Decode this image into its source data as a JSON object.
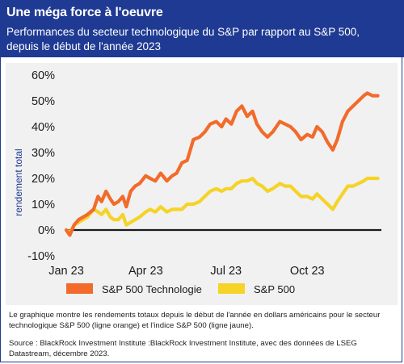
{
  "header": {
    "title": "Une méga force à l'oeuvre",
    "subtitle": "Performances du secteur technologique du S&P par rapport au S&P 500, depuis le début de l'année 2023"
  },
  "colors": {
    "header_bg": "#1f3a93",
    "tech": "#f26b2a",
    "sp500": "#f5d327",
    "zero_line": "#1a1a1a"
  },
  "chart_data": {
    "type": "line",
    "title": "",
    "xlabel": "",
    "ylabel": "rendement total",
    "ylim": [
      -10,
      60
    ],
    "y_ticks": [
      "60%",
      "50%",
      "40%",
      "30%",
      "20%",
      "10%",
      "0%",
      "-10%"
    ],
    "y_tick_values": [
      60,
      50,
      40,
      30,
      20,
      10,
      0,
      -10
    ],
    "x_ticks": [
      "Jan 23",
      "Apr 23",
      "Jul 23",
      "Oct 23"
    ],
    "x_tick_values": [
      "2023-01-01",
      "2023-04-01",
      "2023-07-01",
      "2023-10-01"
    ],
    "grid": false,
    "legend_position": "bottom",
    "series": [
      {
        "name": "S&P 500 Technologie",
        "color": "#f26b2a",
        "points": [
          [
            "2023-01-01",
            0
          ],
          [
            "2023-01-05",
            -2
          ],
          [
            "2023-01-10",
            2
          ],
          [
            "2023-01-15",
            4
          ],
          [
            "2023-01-20",
            5
          ],
          [
            "2023-01-25",
            6
          ],
          [
            "2023-02-01",
            8
          ],
          [
            "2023-02-06",
            13
          ],
          [
            "2023-02-10",
            11
          ],
          [
            "2023-02-15",
            15
          ],
          [
            "2023-02-20",
            12
          ],
          [
            "2023-02-24",
            10
          ],
          [
            "2023-03-01",
            11
          ],
          [
            "2023-03-06",
            13
          ],
          [
            "2023-03-10",
            9
          ],
          [
            "2023-03-15",
            15
          ],
          [
            "2023-03-20",
            17
          ],
          [
            "2023-03-25",
            18
          ],
          [
            "2023-04-01",
            21
          ],
          [
            "2023-04-06",
            20
          ],
          [
            "2023-04-12",
            19
          ],
          [
            "2023-04-18",
            22
          ],
          [
            "2023-04-25",
            19
          ],
          [
            "2023-05-01",
            21
          ],
          [
            "2023-05-06",
            22
          ],
          [
            "2023-05-12",
            26
          ],
          [
            "2023-05-18",
            27
          ],
          [
            "2023-05-25",
            35
          ],
          [
            "2023-06-01",
            36
          ],
          [
            "2023-06-07",
            38
          ],
          [
            "2023-06-13",
            41
          ],
          [
            "2023-06-20",
            42
          ],
          [
            "2023-06-26",
            40
          ],
          [
            "2023-07-01",
            43
          ],
          [
            "2023-07-07",
            41
          ],
          [
            "2023-07-13",
            46
          ],
          [
            "2023-07-19",
            48
          ],
          [
            "2023-07-25",
            44
          ],
          [
            "2023-07-31",
            46
          ],
          [
            "2023-08-05",
            41
          ],
          [
            "2023-08-11",
            38
          ],
          [
            "2023-08-17",
            36
          ],
          [
            "2023-08-23",
            38
          ],
          [
            "2023-08-31",
            42
          ],
          [
            "2023-09-06",
            41
          ],
          [
            "2023-09-12",
            40
          ],
          [
            "2023-09-18",
            38
          ],
          [
            "2023-09-24",
            35
          ],
          [
            "2023-10-01",
            37
          ],
          [
            "2023-10-07",
            36
          ],
          [
            "2023-10-12",
            40
          ],
          [
            "2023-10-18",
            38
          ],
          [
            "2023-10-24",
            34
          ],
          [
            "2023-10-30",
            31
          ],
          [
            "2023-11-04",
            35
          ],
          [
            "2023-11-10",
            42
          ],
          [
            "2023-11-16",
            46
          ],
          [
            "2023-11-22",
            48
          ],
          [
            "2023-11-28",
            50
          ],
          [
            "2023-12-04",
            52
          ],
          [
            "2023-12-08",
            53
          ],
          [
            "2023-12-14",
            52
          ],
          [
            "2023-12-20",
            52
          ]
        ]
      },
      {
        "name": "S&P 500",
        "color": "#f5d327",
        "points": [
          [
            "2023-01-01",
            0
          ],
          [
            "2023-01-05",
            -1
          ],
          [
            "2023-01-10",
            2
          ],
          [
            "2023-01-15",
            3
          ],
          [
            "2023-01-20",
            4
          ],
          [
            "2023-01-25",
            5
          ],
          [
            "2023-02-01",
            8
          ],
          [
            "2023-02-06",
            7
          ],
          [
            "2023-02-10",
            6
          ],
          [
            "2023-02-15",
            8
          ],
          [
            "2023-02-20",
            5
          ],
          [
            "2023-02-24",
            4
          ],
          [
            "2023-03-01",
            4
          ],
          [
            "2023-03-06",
            6
          ],
          [
            "2023-03-10",
            2
          ],
          [
            "2023-03-15",
            3
          ],
          [
            "2023-03-20",
            4
          ],
          [
            "2023-03-25",
            5
          ],
          [
            "2023-04-01",
            7
          ],
          [
            "2023-04-06",
            8
          ],
          [
            "2023-04-12",
            7
          ],
          [
            "2023-04-18",
            9
          ],
          [
            "2023-04-25",
            7
          ],
          [
            "2023-05-01",
            8
          ],
          [
            "2023-05-06",
            8
          ],
          [
            "2023-05-12",
            8
          ],
          [
            "2023-05-18",
            10
          ],
          [
            "2023-05-25",
            10
          ],
          [
            "2023-06-01",
            11
          ],
          [
            "2023-06-07",
            13
          ],
          [
            "2023-06-13",
            15
          ],
          [
            "2023-06-20",
            16
          ],
          [
            "2023-06-26",
            15
          ],
          [
            "2023-07-01",
            16
          ],
          [
            "2023-07-07",
            16
          ],
          [
            "2023-07-13",
            18
          ],
          [
            "2023-07-19",
            19
          ],
          [
            "2023-07-25",
            19
          ],
          [
            "2023-07-31",
            20
          ],
          [
            "2023-08-05",
            18
          ],
          [
            "2023-08-11",
            17
          ],
          [
            "2023-08-17",
            15
          ],
          [
            "2023-08-23",
            16
          ],
          [
            "2023-08-31",
            18
          ],
          [
            "2023-09-06",
            17
          ],
          [
            "2023-09-12",
            17
          ],
          [
            "2023-09-18",
            15
          ],
          [
            "2023-09-24",
            13
          ],
          [
            "2023-10-01",
            13
          ],
          [
            "2023-10-07",
            12
          ],
          [
            "2023-10-12",
            14
          ],
          [
            "2023-10-18",
            12
          ],
          [
            "2023-10-24",
            10
          ],
          [
            "2023-10-30",
            8
          ],
          [
            "2023-11-04",
            11
          ],
          [
            "2023-11-10",
            14
          ],
          [
            "2023-11-16",
            17
          ],
          [
            "2023-11-22",
            17
          ],
          [
            "2023-11-28",
            18
          ],
          [
            "2023-12-04",
            19
          ],
          [
            "2023-12-08",
            20
          ],
          [
            "2023-12-14",
            20
          ],
          [
            "2023-12-20",
            20
          ]
        ]
      }
    ]
  },
  "footnotes": {
    "description": "Le graphique montre les rendements totaux depuis le début de l'année en dollars américains pour le secteur technologique S&P 500 (ligne orange) et l'indice S&P 500 (ligne jaune).",
    "source": "Source : BlackRock Investment Institute :BlackRock Investment Institute, avec des données de LSEG Datastream, décembre 2023."
  }
}
